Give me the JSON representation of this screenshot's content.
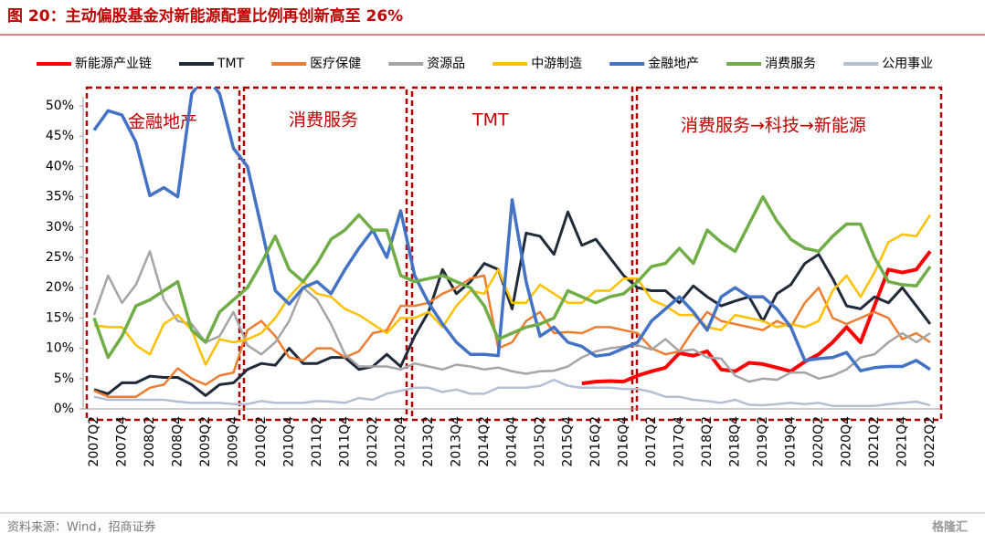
{
  "chart_data": {
    "type": "line",
    "title": "图 20：主动偏股基金对新能源配置比例再创新高至 26%",
    "source": "资料来源：Wind，招商证券",
    "watermark": "格隆汇",
    "annotations": [
      "金融地产",
      "消费服务",
      "TMT",
      "消费服务→科技→新能源"
    ],
    "categories": [
      "2007Q2",
      null,
      "2007Q4",
      null,
      "2008Q2",
      null,
      "2008Q4",
      null,
      "2009Q2",
      null,
      "2009Q4",
      null,
      "2010Q2",
      null,
      "2010Q4",
      null,
      "2011Q2",
      null,
      "2011Q4",
      null,
      "2012Q2",
      null,
      "2012Q4",
      null,
      "2013Q2",
      null,
      "2013Q4",
      null,
      "2014Q2",
      null,
      "2014Q4",
      null,
      "2015Q2",
      null,
      "2015Q4",
      null,
      "2016Q2",
      null,
      "2016Q4",
      null,
      "2017Q2",
      null,
      "2017Q4",
      null,
      "2018Q2",
      null,
      "2018Q4",
      null,
      "2019Q2",
      null,
      "2019Q4",
      null,
      "2020Q2",
      null,
      "2020Q4",
      null,
      "2021Q2",
      null,
      "2021Q4",
      null,
      "2022Q2"
    ],
    "ylim": [
      0,
      50
    ],
    "yticks": [
      {
        "value": 0,
        "label": "0%"
      },
      {
        "value": 5,
        "label": "5%"
      },
      {
        "value": 10,
        "label": "10%"
      },
      {
        "value": 15,
        "label": "15%"
      },
      {
        "value": 20,
        "label": "20%"
      },
      {
        "value": 25,
        "label": "25%"
      },
      {
        "value": 30,
        "label": "30%"
      },
      {
        "value": 35,
        "label": "35%"
      },
      {
        "value": 40,
        "label": "40%"
      },
      {
        "value": 45,
        "label": "45%"
      },
      {
        "value": 50,
        "label": "50%"
      }
    ],
    "grid": false,
    "legend": "top",
    "series": [
      {
        "name": "新能源产业链",
        "color": "#ff0000",
        "width": 4,
        "values": [
          null,
          null,
          null,
          null,
          null,
          null,
          null,
          null,
          null,
          null,
          null,
          null,
          null,
          null,
          null,
          null,
          null,
          null,
          null,
          null,
          null,
          null,
          null,
          null,
          null,
          null,
          null,
          null,
          null,
          null,
          null,
          null,
          null,
          null,
          null,
          4.2,
          4.5,
          4.6,
          4.5,
          5.5,
          6.2,
          6.8,
          9.2,
          8.8,
          9.5,
          6.5,
          6.2,
          7.6,
          7.4,
          6.8,
          6.2,
          7.8,
          9,
          11,
          13.5,
          11,
          17,
          23,
          22.5,
          23,
          26
        ]
      },
      {
        "name": "TMT",
        "color": "#1f2a3a",
        "width": 3,
        "values": [
          3.2,
          2.5,
          4.3,
          4.3,
          5.4,
          5.2,
          5.2,
          4,
          2.2,
          4,
          4.3,
          6.5,
          7.5,
          7.2,
          10,
          7.5,
          7.5,
          8.5,
          8.5,
          6.5,
          7,
          9,
          7,
          12,
          16,
          23,
          19,
          21,
          24,
          23,
          16.5,
          29,
          28.5,
          25.5,
          32.5,
          27,
          28,
          25,
          22,
          20,
          19.5,
          19.5,
          17.5,
          20.3,
          18.5,
          17,
          17.8,
          18.5,
          14.5,
          19,
          20.5,
          24,
          25.5,
          21.5,
          17,
          16.5,
          18.5,
          17.5,
          20,
          17,
          14
        ]
      },
      {
        "name": "医疗保健",
        "color": "#ed7d31",
        "width": 2.5,
        "values": [
          3,
          2,
          2,
          2,
          3.5,
          4,
          6.7,
          5,
          4,
          5.5,
          6,
          13,
          14.5,
          12,
          8.5,
          8,
          10,
          10,
          8.5,
          9.5,
          12.5,
          13,
          17,
          17,
          17.5,
          19,
          20,
          21.5,
          22,
          10,
          11,
          14.5,
          16,
          12.5,
          12.7,
          12.5,
          13.5,
          13.5,
          13,
          12.5,
          10,
          9,
          9.5,
          13,
          16,
          14.5,
          14,
          13.5,
          13,
          14.5,
          13.5,
          17.5,
          20,
          15,
          14,
          15,
          16,
          15,
          11.5,
          12.5,
          11
        ]
      },
      {
        "name": "资源品",
        "color": "#a5a5a5",
        "width": 2.5,
        "values": [
          15.5,
          22,
          17.5,
          20.5,
          26,
          18,
          14.5,
          14,
          11,
          12,
          16,
          10.5,
          9,
          11,
          14.5,
          20,
          18,
          14,
          9,
          7,
          7,
          7,
          6.5,
          7.5,
          7,
          6.5,
          7.3,
          7,
          6.5,
          6.8,
          6.2,
          5.8,
          6.2,
          6.3,
          7,
          8.5,
          9.5,
          10,
          10.3,
          10.5,
          9.8,
          11.5,
          9.5,
          9.8,
          8.5,
          8.3,
          5.5,
          4.5,
          5,
          4.8,
          6,
          6,
          5,
          5.5,
          6.5,
          8.5,
          9,
          11,
          12.5,
          11,
          12.5
        ]
      },
      {
        "name": "中游制造",
        "color": "#ffc000",
        "width": 2.5,
        "values": [
          13.8,
          13.5,
          13.5,
          10.5,
          9,
          14,
          15.5,
          13,
          7.3,
          11.5,
          11,
          11.5,
          12.5,
          15,
          18.5,
          21,
          19,
          18.5,
          16.5,
          15.5,
          14,
          12.5,
          15,
          15,
          16,
          13.5,
          17,
          19.5,
          19,
          23,
          17.5,
          17.5,
          20.5,
          19,
          17.5,
          17.5,
          19.5,
          19.5,
          21.5,
          21.5,
          18,
          17,
          15.5,
          15.5,
          13.5,
          13,
          15.5,
          15,
          14.5,
          13.5,
          14,
          13.5,
          14.5,
          19.5,
          22,
          18.5,
          22.5,
          27.5,
          28.8,
          28.5,
          32
        ]
      },
      {
        "name": "金融地产",
        "color": "#4472c4",
        "width": 3.5,
        "values": [
          46,
          49.2,
          48.5,
          44,
          35.2,
          36.5,
          35,
          52,
          55,
          52,
          43,
          40,
          30,
          19.5,
          17.3,
          20,
          21,
          19,
          23,
          26.5,
          29.5,
          25,
          32.7,
          22,
          17.5,
          14,
          11,
          9,
          9,
          8.8,
          34.5,
          21,
          12,
          13.5,
          11,
          10.3,
          8.7,
          9,
          10,
          11,
          14.5,
          16.5,
          18.5,
          16,
          13,
          18.5,
          20,
          18.5,
          18.5,
          16.5,
          13.5,
          8,
          8.3,
          8.5,
          9.3,
          6.3,
          6.8,
          7,
          7,
          8,
          6.5
        ]
      },
      {
        "name": "消费服务",
        "color": "#70ad47",
        "width": 3.5,
        "values": [
          15,
          8.5,
          12,
          17,
          18,
          19.5,
          21,
          13,
          11,
          16,
          18,
          20,
          24,
          28.5,
          23,
          21,
          24,
          28,
          29.5,
          32,
          29.5,
          29.5,
          22,
          21,
          21.5,
          22,
          21,
          20,
          17,
          11.5,
          12.5,
          13.5,
          14,
          15,
          19.5,
          18.5,
          17.5,
          18.5,
          19,
          21,
          23.5,
          24,
          26.5,
          24,
          29.5,
          27.5,
          26,
          30.5,
          35,
          31,
          28,
          26.5,
          26,
          28.5,
          30.5,
          30.5,
          25,
          21,
          20.5,
          20.3,
          23.5
        ]
      },
      {
        "name": "公用事业",
        "color": "#b4bfd4",
        "width": 2.5,
        "values": [
          2,
          1.5,
          1.5,
          1.5,
          1.5,
          1.5,
          1.2,
          1,
          1,
          1,
          0.8,
          0.8,
          1.3,
          1,
          1,
          1,
          1.3,
          1.2,
          1,
          1.8,
          1.5,
          2.5,
          3,
          3.5,
          3.5,
          2.8,
          3.2,
          2.5,
          2.5,
          3.5,
          3.5,
          3.5,
          3.8,
          4.8,
          3.8,
          3.5,
          3.5,
          3.5,
          3.3,
          3.3,
          2.8,
          2,
          2,
          1.5,
          1.3,
          1,
          1.5,
          0.7,
          0.6,
          0.8,
          1,
          0.8,
          1,
          0.5,
          0.5,
          0.5,
          0.5,
          0.8,
          1,
          1.2,
          0.6
        ]
      }
    ]
  }
}
